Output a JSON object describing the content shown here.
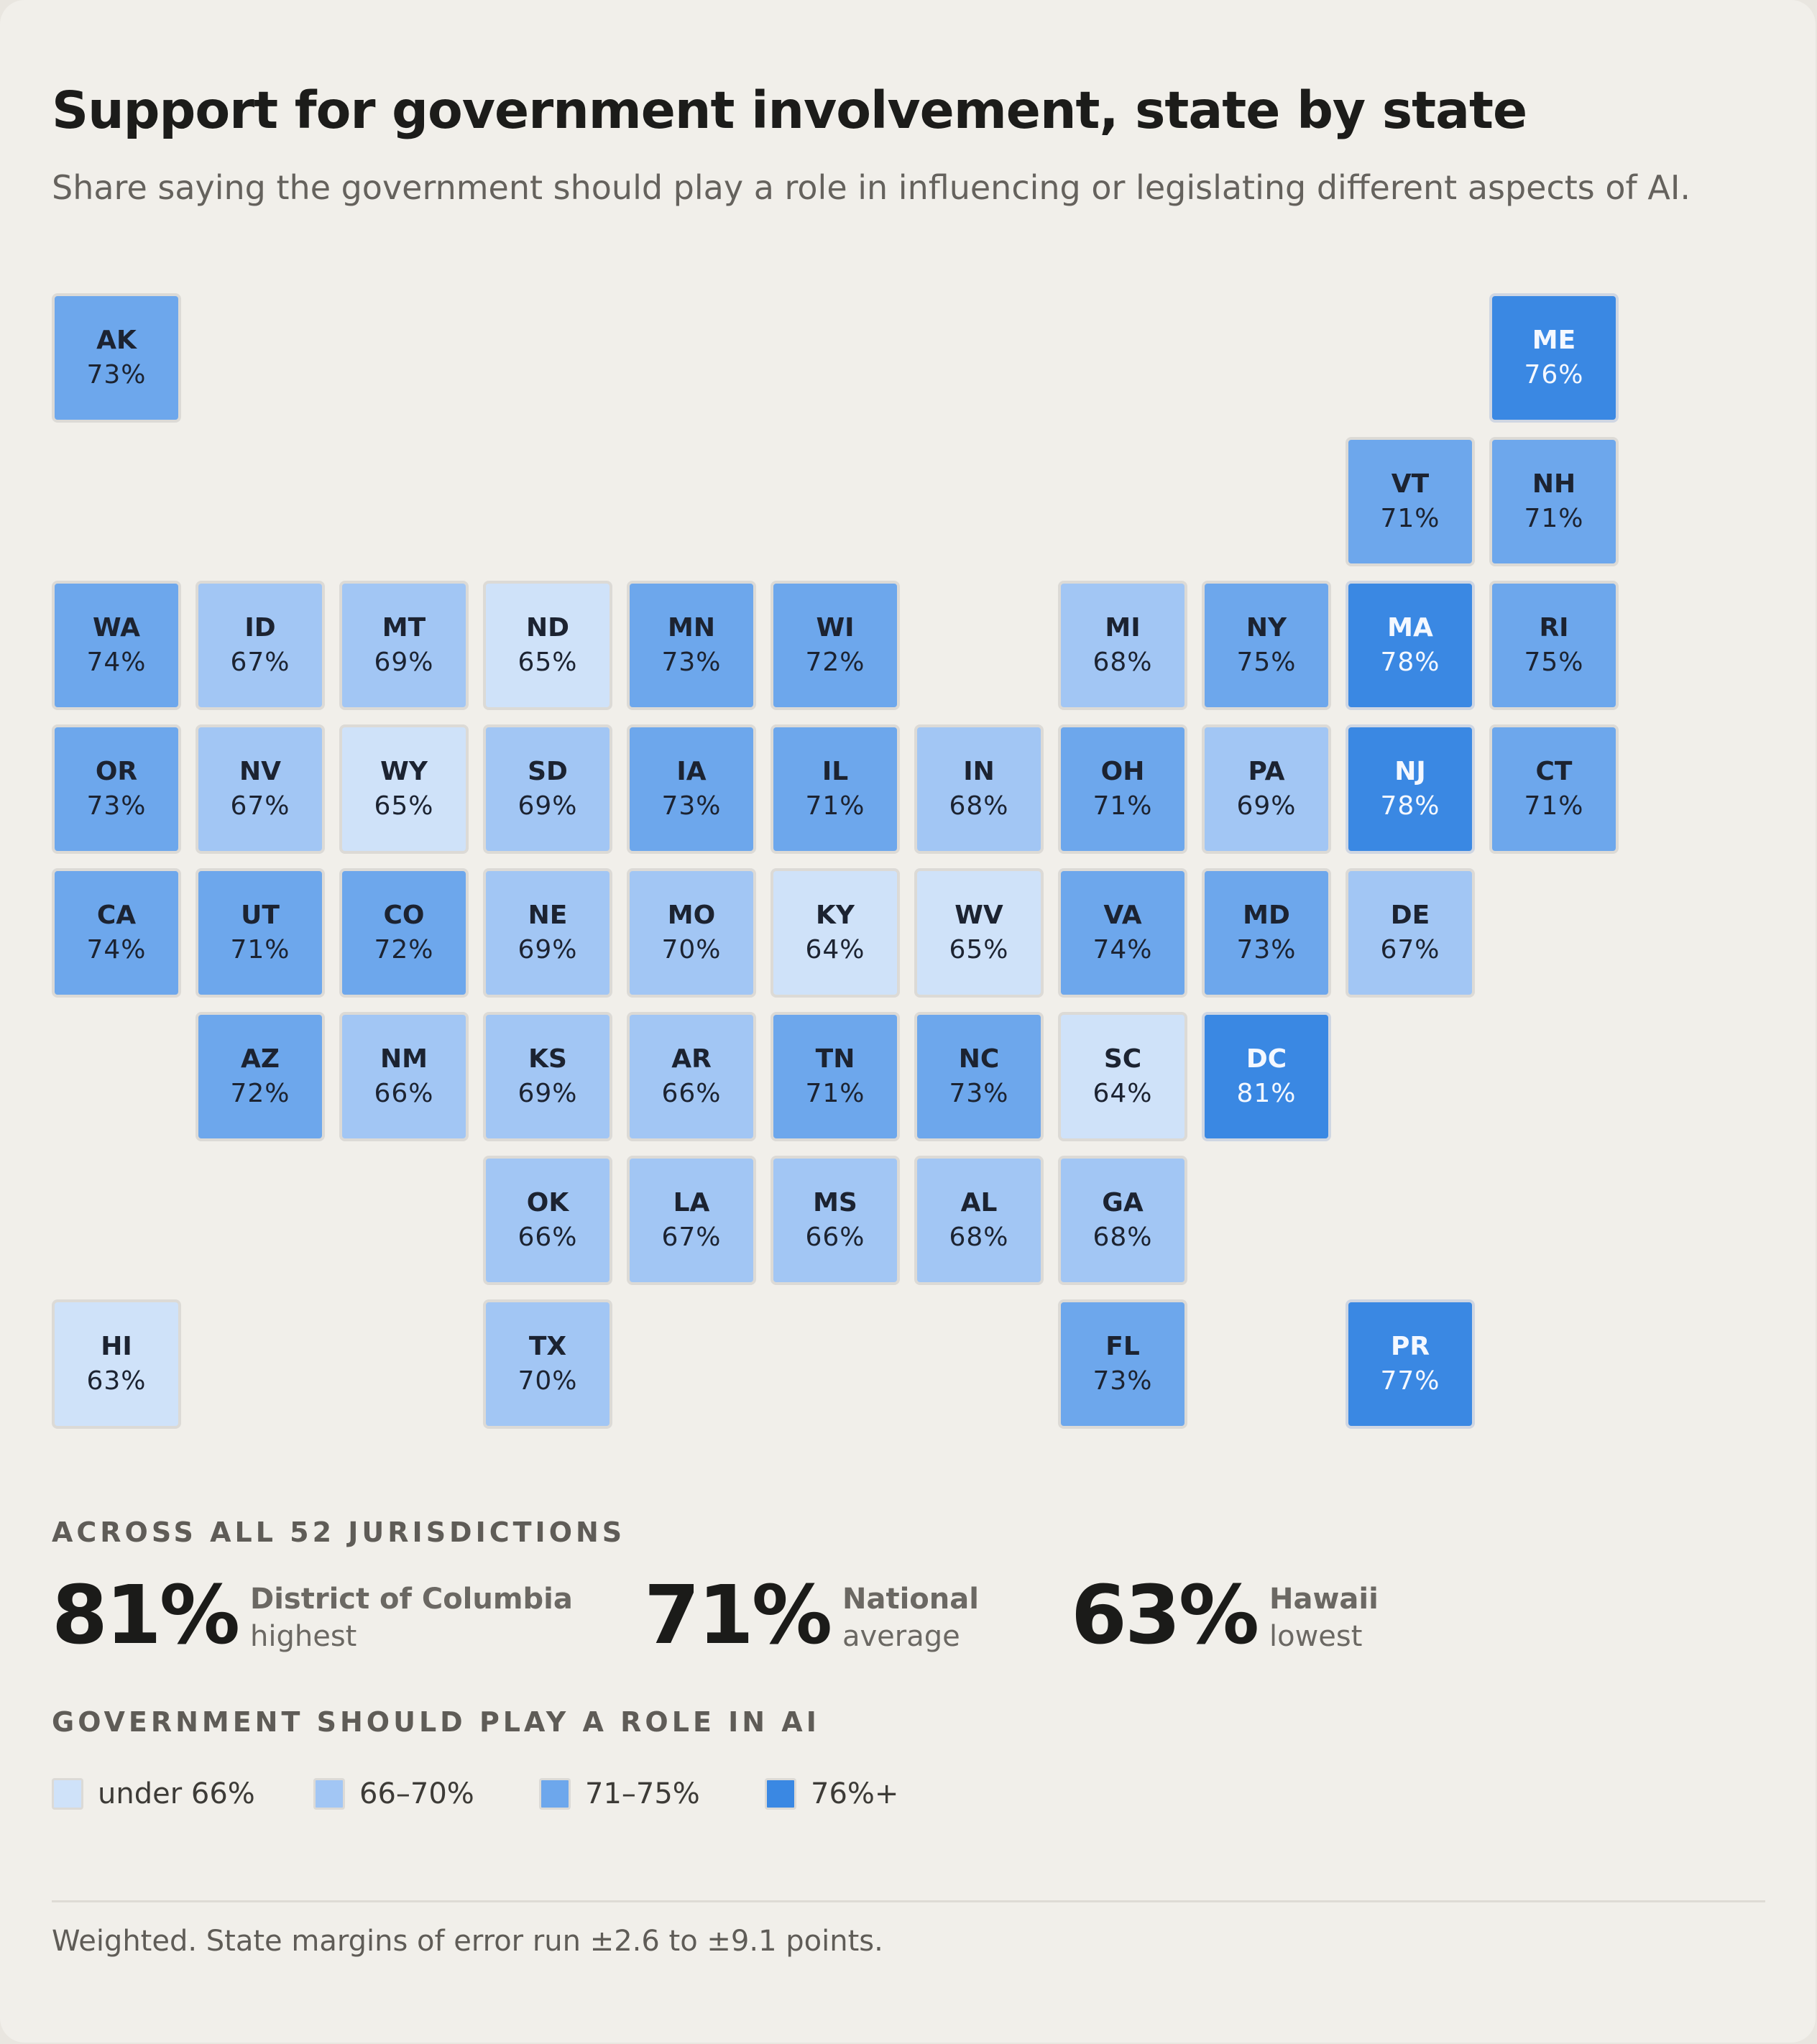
{
  "title": "Support for government involvement, state by state",
  "subtitle": "Share saying the government should play a role in influencing or legislating different aspects of AI.",
  "colors": {
    "under_66": "#cfe2f9",
    "b66_70": "#a2c6f4",
    "b71_75": "#6da7ec",
    "b76_plus": "#3a88e3"
  },
  "states": [
    {
      "abbr": "AK",
      "value": 73,
      "label": "73%",
      "col": 0,
      "row": 0
    },
    {
      "abbr": "ME",
      "value": 76,
      "label": "76%",
      "col": 10,
      "row": 0
    },
    {
      "abbr": "VT",
      "value": 71,
      "label": "71%",
      "col": 9,
      "row": 1
    },
    {
      "abbr": "NH",
      "value": 71,
      "label": "71%",
      "col": 10,
      "row": 1
    },
    {
      "abbr": "WA",
      "value": 74,
      "label": "74%",
      "col": 0,
      "row": 2
    },
    {
      "abbr": "ID",
      "value": 67,
      "label": "67%",
      "col": 1,
      "row": 2
    },
    {
      "abbr": "MT",
      "value": 69,
      "label": "69%",
      "col": 2,
      "row": 2
    },
    {
      "abbr": "ND",
      "value": 65,
      "label": "65%",
      "col": 3,
      "row": 2
    },
    {
      "abbr": "MN",
      "value": 73,
      "label": "73%",
      "col": 4,
      "row": 2
    },
    {
      "abbr": "WI",
      "value": 72,
      "label": "72%",
      "col": 5,
      "row": 2
    },
    {
      "abbr": "MI",
      "value": 68,
      "label": "68%",
      "col": 7,
      "row": 2
    },
    {
      "abbr": "NY",
      "value": 75,
      "label": "75%",
      "col": 8,
      "row": 2
    },
    {
      "abbr": "MA",
      "value": 78,
      "label": "78%",
      "col": 9,
      "row": 2
    },
    {
      "abbr": "RI",
      "value": 75,
      "label": "75%",
      "col": 10,
      "row": 2
    },
    {
      "abbr": "OR",
      "value": 73,
      "label": "73%",
      "col": 0,
      "row": 3
    },
    {
      "abbr": "NV",
      "value": 67,
      "label": "67%",
      "col": 1,
      "row": 3
    },
    {
      "abbr": "WY",
      "value": 65,
      "label": "65%",
      "col": 2,
      "row": 3
    },
    {
      "abbr": "SD",
      "value": 69,
      "label": "69%",
      "col": 3,
      "row": 3
    },
    {
      "abbr": "IA",
      "value": 73,
      "label": "73%",
      "col": 4,
      "row": 3
    },
    {
      "abbr": "IL",
      "value": 71,
      "label": "71%",
      "col": 5,
      "row": 3
    },
    {
      "abbr": "IN",
      "value": 68,
      "label": "68%",
      "col": 6,
      "row": 3
    },
    {
      "abbr": "OH",
      "value": 71,
      "label": "71%",
      "col": 7,
      "row": 3
    },
    {
      "abbr": "PA",
      "value": 69,
      "label": "69%",
      "col": 8,
      "row": 3
    },
    {
      "abbr": "NJ",
      "value": 78,
      "label": "78%",
      "col": 9,
      "row": 3
    },
    {
      "abbr": "CT",
      "value": 71,
      "label": "71%",
      "col": 10,
      "row": 3
    },
    {
      "abbr": "CA",
      "value": 74,
      "label": "74%",
      "col": 0,
      "row": 4
    },
    {
      "abbr": "UT",
      "value": 71,
      "label": "71%",
      "col": 1,
      "row": 4
    },
    {
      "abbr": "CO",
      "value": 72,
      "label": "72%",
      "col": 2,
      "row": 4
    },
    {
      "abbr": "NE",
      "value": 69,
      "label": "69%",
      "col": 3,
      "row": 4
    },
    {
      "abbr": "MO",
      "value": 70,
      "label": "70%",
      "col": 4,
      "row": 4
    },
    {
      "abbr": "KY",
      "value": 64,
      "label": "64%",
      "col": 5,
      "row": 4
    },
    {
      "abbr": "WV",
      "value": 65,
      "label": "65%",
      "col": 6,
      "row": 4
    },
    {
      "abbr": "VA",
      "value": 74,
      "label": "74%",
      "col": 7,
      "row": 4
    },
    {
      "abbr": "MD",
      "value": 73,
      "label": "73%",
      "col": 8,
      "row": 4
    },
    {
      "abbr": "DE",
      "value": 67,
      "label": "67%",
      "col": 9,
      "row": 4
    },
    {
      "abbr": "AZ",
      "value": 72,
      "label": "72%",
      "col": 1,
      "row": 5
    },
    {
      "abbr": "NM",
      "value": 66,
      "label": "66%",
      "col": 2,
      "row": 5
    },
    {
      "abbr": "KS",
      "value": 69,
      "label": "69%",
      "col": 3,
      "row": 5
    },
    {
      "abbr": "AR",
      "value": 66,
      "label": "66%",
      "col": 4,
      "row": 5
    },
    {
      "abbr": "TN",
      "value": 71,
      "label": "71%",
      "col": 5,
      "row": 5
    },
    {
      "abbr": "NC",
      "value": 73,
      "label": "73%",
      "col": 6,
      "row": 5
    },
    {
      "abbr": "SC",
      "value": 64,
      "label": "64%",
      "col": 7,
      "row": 5
    },
    {
      "abbr": "DC",
      "value": 81,
      "label": "81%",
      "col": 8,
      "row": 5
    },
    {
      "abbr": "OK",
      "value": 66,
      "label": "66%",
      "col": 3,
      "row": 6
    },
    {
      "abbr": "LA",
      "value": 67,
      "label": "67%",
      "col": 4,
      "row": 6
    },
    {
      "abbr": "MS",
      "value": 66,
      "label": "66%",
      "col": 5,
      "row": 6
    },
    {
      "abbr": "AL",
      "value": 68,
      "label": "68%",
      "col": 6,
      "row": 6
    },
    {
      "abbr": "GA",
      "value": 68,
      "label": "68%",
      "col": 7,
      "row": 6
    },
    {
      "abbr": "HI",
      "value": 63,
      "label": "63%",
      "col": 0,
      "row": 7
    },
    {
      "abbr": "TX",
      "value": 70,
      "label": "70%",
      "col": 3,
      "row": 7
    },
    {
      "abbr": "FL",
      "value": 73,
      "label": "73%",
      "col": 7,
      "row": 7
    },
    {
      "abbr": "PR",
      "value": 77,
      "label": "77%",
      "col": 9,
      "row": 7
    }
  ],
  "summary": {
    "heading": "ACROSS ALL 52 JURISDICTIONS",
    "highest": {
      "value": "81%",
      "name": "District of Columbia",
      "role": "highest"
    },
    "average": {
      "value": "71%",
      "name": "National",
      "role": "average"
    },
    "lowest": {
      "value": "63%",
      "name": "Hawaii",
      "role": "lowest"
    }
  },
  "legend": {
    "heading": "GOVERNMENT SHOULD PLAY A ROLE IN AI",
    "items": [
      {
        "label": "under 66%",
        "color": "#cfe2f9"
      },
      {
        "label": "66–70%",
        "color": "#a2c6f4"
      },
      {
        "label": "71–75%",
        "color": "#6da7ec"
      },
      {
        "label": "76%+",
        "color": "#3a88e3"
      }
    ]
  },
  "footnote": "Weighted. State margins of error run ±2.6 to ±9.1 points."
}
